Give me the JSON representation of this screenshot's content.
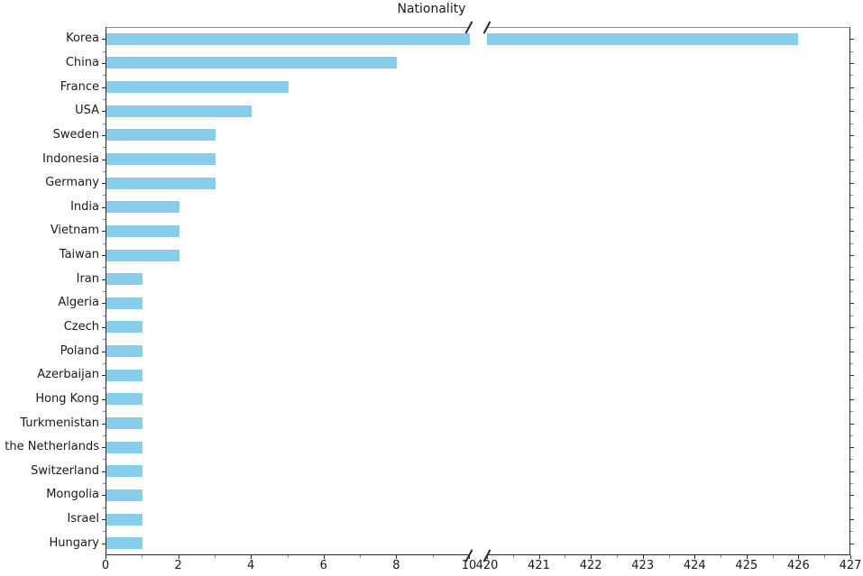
{
  "chart_data": {
    "type": "bar",
    "orientation": "horizontal",
    "title": "Nationality",
    "categories": [
      "Korea",
      "China",
      "France",
      "USA",
      "Sweden",
      "Indonesia",
      "Germany",
      "India",
      "Vietnam",
      "Taiwan",
      "Iran",
      "Algeria",
      "Czech",
      "Poland",
      "Azerbaijan",
      "Hong Kong",
      "Turkmenistan",
      "the Netherlands",
      "Switzerland",
      "Mongolia",
      "Israel",
      "Hungary"
    ],
    "values": [
      426,
      8,
      5,
      4,
      3,
      3,
      3,
      2,
      2,
      2,
      1,
      1,
      1,
      1,
      1,
      1,
      1,
      1,
      1,
      1,
      1,
      1
    ],
    "bar_color": "#87CEEB",
    "grid": false,
    "legend": "none",
    "axis_break": {
      "left_xlim": [
        0,
        10
      ],
      "right_xlim": [
        420,
        427
      ],
      "left_xticks": [
        0,
        2,
        4,
        6,
        8,
        10
      ],
      "left_xticks_minor": [
        1,
        3,
        5,
        7,
        9
      ],
      "right_xticks": [
        420,
        421,
        422,
        423,
        424,
        425,
        426,
        427
      ],
      "right_xticks_minor": [
        420.5,
        421.5,
        422.5,
        423.5,
        424.5,
        425.5,
        426.5
      ]
    }
  }
}
